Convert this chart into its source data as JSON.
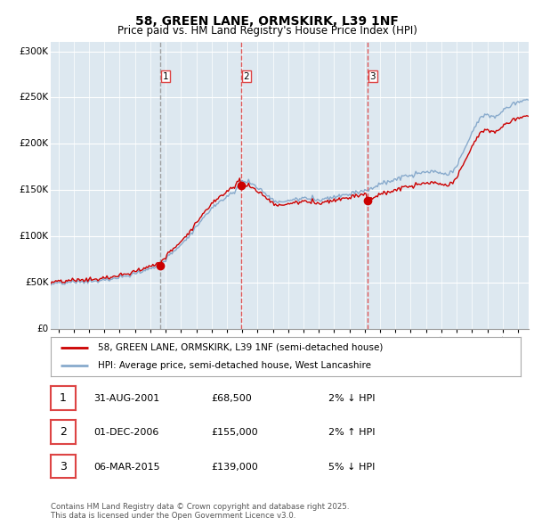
{
  "title": "58, GREEN LANE, ORMSKIRK, L39 1NF",
  "subtitle": "Price paid vs. HM Land Registry's House Price Index (HPI)",
  "legend_line1": "58, GREEN LANE, ORMSKIRK, L39 1NF (semi-detached house)",
  "legend_line2": "HPI: Average price, semi-detached house, West Lancashire",
  "transactions": [
    {
      "num": 1,
      "date": "31-AUG-2001",
      "price": 68500,
      "pct": "2%",
      "dir": "↓",
      "x_year": 2001.67,
      "vline_style": "dashed_gray"
    },
    {
      "num": 2,
      "date": "01-DEC-2006",
      "price": 155000,
      "pct": "2%",
      "dir": "↑",
      "x_year": 2006.92,
      "vline_style": "dashed_red"
    },
    {
      "num": 3,
      "date": "06-MAR-2015",
      "price": 139000,
      "pct": "5%",
      "dir": "↓",
      "x_year": 2015.18,
      "vline_style": "dashed_red"
    }
  ],
  "footer": "Contains HM Land Registry data © Crown copyright and database right 2025.\nThis data is licensed under the Open Government Licence v3.0.",
  "price_color": "#cc0000",
  "hpi_color": "#88aacc",
  "chart_bg": "#dde8f0",
  "background_color": "#ffffff",
  "grid_color": "#ffffff",
  "vline_red_color": "#dd4444",
  "vline_gray_color": "#999999",
  "xlim": [
    1994.5,
    2025.7
  ],
  "ylim": [
    0,
    310000
  ],
  "yticks": [
    0,
    50000,
    100000,
    150000,
    200000,
    250000,
    300000
  ],
  "ytick_labels": [
    "£0",
    "£50K",
    "£100K",
    "£150K",
    "£200K",
    "£250K",
    "£300K"
  ]
}
